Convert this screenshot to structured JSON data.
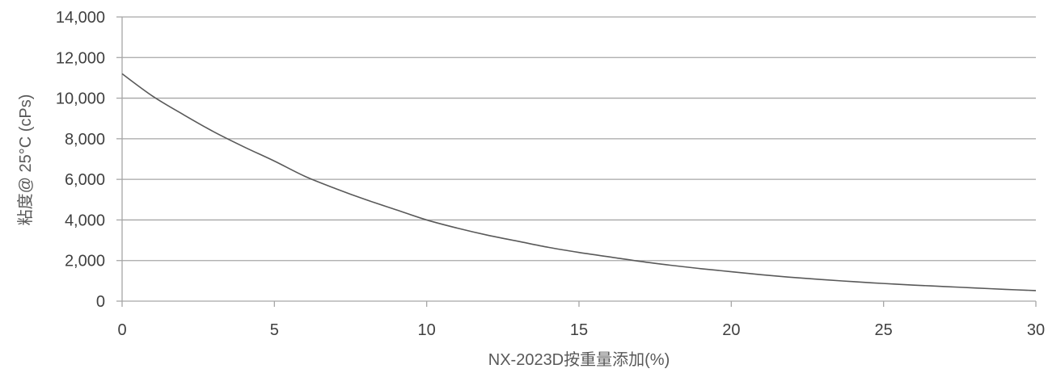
{
  "chart_data": {
    "type": "line",
    "title": "",
    "xlabel": "NX-2023D按重量添加(%)",
    "ylabel": "粘度@ 25°C (cPs)",
    "xlim": [
      0,
      30
    ],
    "ylim": [
      0,
      14000
    ],
    "x_ticks": [
      "0",
      "5",
      "10",
      "15",
      "20",
      "25",
      "30"
    ],
    "y_ticks": [
      "0",
      "2,000",
      "4,000",
      "6,000",
      "8,000",
      "10,000",
      "12,000",
      "14,000"
    ],
    "grid": "horizontal",
    "legend": "none",
    "series": [
      {
        "color": "#595959",
        "x": [
          0,
          1,
          2,
          3,
          4,
          5,
          6,
          7,
          8,
          9,
          10,
          11,
          12,
          13,
          14,
          15,
          16,
          17,
          18,
          19,
          20,
          21,
          22,
          23,
          24,
          25,
          26,
          27,
          28,
          29,
          30
        ],
        "values": [
          11200,
          10100,
          9200,
          8350,
          7600,
          6900,
          6150,
          5550,
          5000,
          4500,
          4000,
          3600,
          3250,
          2950,
          2650,
          2400,
          2180,
          1960,
          1770,
          1600,
          1450,
          1300,
          1170,
          1060,
          960,
          870,
          790,
          720,
          650,
          580,
          520
        ]
      }
    ]
  },
  "colors": {
    "line": "#595959",
    "gridline": "#a6a6a6",
    "axis": "#a6a6a6",
    "text": "#404040"
  }
}
